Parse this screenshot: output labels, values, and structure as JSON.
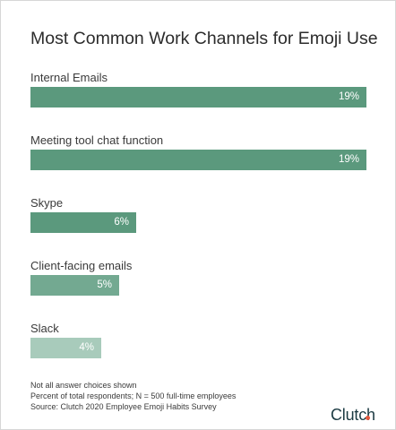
{
  "chart_data": {
    "type": "bar",
    "orientation": "horizontal",
    "title": "Most Common Work Channels for Emoji Use",
    "categories": [
      "Internal Emails",
      "Meeting tool chat function",
      "Skype",
      "Client-facing emails",
      "Slack"
    ],
    "values": [
      19,
      19,
      6,
      5,
      4
    ],
    "value_labels": [
      "19%",
      "19%",
      "6%",
      "5%",
      "4%"
    ],
    "bar_colors": [
      "#5b997d",
      "#5b997d",
      "#5b997d",
      "#73a991",
      "#a8cbbb"
    ],
    "xlim": [
      0,
      19
    ],
    "grid": false,
    "legend": "none"
  },
  "footnotes": [
    "Not all answer choices shown",
    "Percent of total respondents; N = 500 full-time employees",
    "Source: Clutch 2020 Employee Emoji Habits Survey"
  ],
  "brand": {
    "logo_text": "Clutch",
    "logo_color": "#1b3a42",
    "logo_dot_color": "#e2583e"
  }
}
